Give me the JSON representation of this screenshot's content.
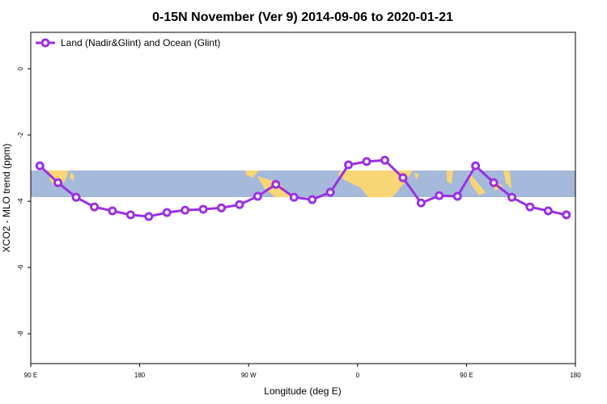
{
  "chart_data": {
    "type": "line",
    "title": "0-15N November (Ver 9)   2014-09-06 to 2020-01-21",
    "x_label": "Longitude (deg E)",
    "y_label": "XCO2 - MLO trend (ppm)",
    "x": [
      97.5,
      112.5,
      127.5,
      142.5,
      157.5,
      172.5,
      187.5,
      202.5,
      217.5,
      232.5,
      247.5,
      262.5,
      277.5,
      292.5,
      307.5,
      322.5,
      337.5,
      352.5,
      367.5,
      382.5,
      397.5,
      412.5,
      427.5,
      442.5,
      457.5,
      472.5,
      487.5,
      502.5,
      517.5,
      532.5
    ],
    "series": [
      {
        "name": "Land (Nadir&Glint) and Ocean (Glint)",
        "color": "#9b30e0",
        "values": [
          -2.93,
          -3.44,
          -3.88,
          -4.17,
          -4.29,
          -4.41,
          -4.46,
          -4.34,
          -4.27,
          -4.24,
          -4.2,
          -4.1,
          -3.85,
          -3.49,
          -3.88,
          -3.95,
          -3.73,
          -2.9,
          -2.8,
          -2.76,
          -3.29,
          -4.05,
          -3.83,
          -3.85,
          -2.93,
          -3.44,
          -3.88,
          -4.17,
          -4.29,
          -4.41
        ]
      }
    ],
    "xlim": [
      90,
      540
    ],
    "xticks": [
      {
        "value": 90,
        "label": "90 E"
      },
      {
        "value": 180,
        "label": "180"
      },
      {
        "value": 270,
        "label": "90 W"
      },
      {
        "value": 360,
        "label": "0"
      },
      {
        "value": 450,
        "label": "90 E"
      },
      {
        "value": 540,
        "label": "180"
      }
    ],
    "ylim": [
      -8.9,
      1.1
    ],
    "yticks": [
      0,
      -2,
      -4,
      -6,
      -8
    ],
    "legend": "top-left"
  }
}
